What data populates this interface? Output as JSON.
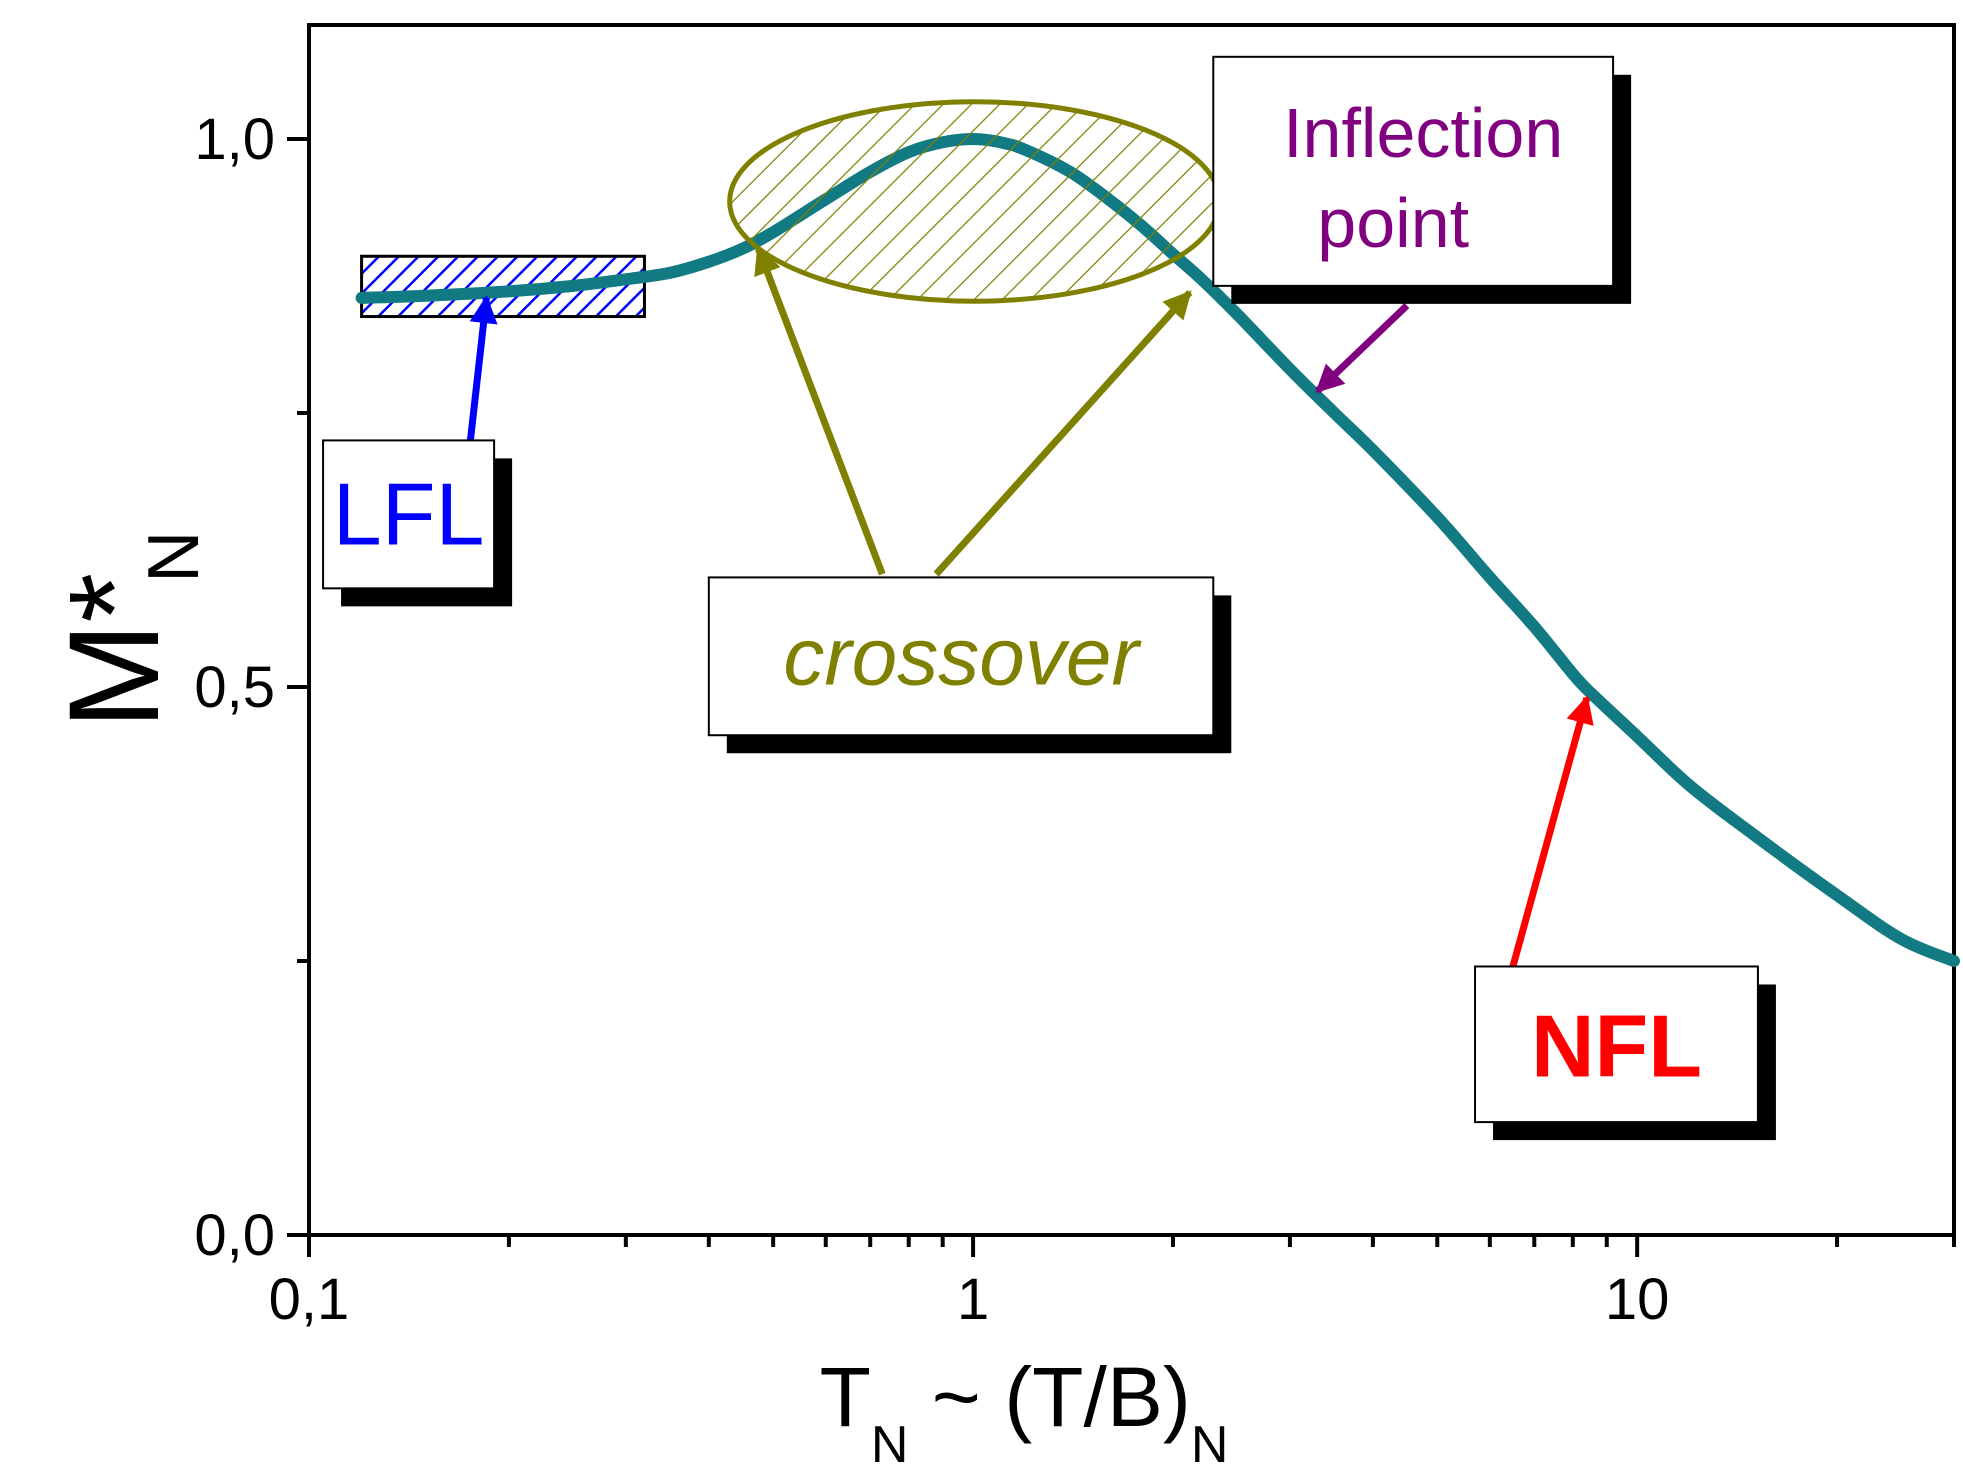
{
  "chart_data": {
    "type": "line",
    "x_scale": "log",
    "xlim": [
      0.1,
      30
    ],
    "ylim": [
      0.0,
      1.1
    ],
    "grid": false,
    "y_ticks": [
      {
        "value": 0.0,
        "label": "0,0"
      },
      {
        "value": 0.5,
        "label": "0,5"
      },
      {
        "value": 1.0,
        "label": "1,0"
      }
    ],
    "y_minor_ticks": [
      0.25,
      0.75
    ],
    "x_ticks": [
      {
        "value": 0.1,
        "label": "0,1"
      },
      {
        "value": 1,
        "label": "1"
      },
      {
        "value": 10,
        "label": "10"
      }
    ],
    "x_minor_ticks": [
      0.2,
      0.3,
      0.4,
      0.5,
      0.6,
      0.7,
      0.8,
      0.9,
      2,
      3,
      4,
      5,
      6,
      7,
      8,
      9,
      20,
      30
    ],
    "xlabel": {
      "main": "T",
      "sub1": "N",
      "mid": " ~ (T/B)",
      "sub2": "N"
    },
    "ylabel": {
      "main": "M*",
      "sub": "N"
    },
    "series": [
      {
        "color": "#127a82",
        "x": [
          0.12,
          0.15,
          0.2,
          0.25,
          0.3,
          0.35,
          0.4,
          0.45,
          0.5,
          0.6,
          0.7,
          0.8,
          0.9,
          1.0,
          1.1,
          1.2,
          1.4,
          1.6,
          1.8,
          2.0,
          2.2,
          2.5,
          3.0,
          3.5,
          4.0,
          5.0,
          6.0,
          7.0,
          8.0,
          8.5,
          10,
          12,
          15,
          20,
          25,
          30
        ],
        "y": [
          0.855,
          0.857,
          0.861,
          0.866,
          0.872,
          0.878,
          0.888,
          0.9,
          0.915,
          0.945,
          0.97,
          0.988,
          0.997,
          1.0,
          0.997,
          0.99,
          0.97,
          0.945,
          0.92,
          0.895,
          0.873,
          0.84,
          0.79,
          0.75,
          0.716,
          0.655,
          0.6,
          0.555,
          0.512,
          0.495,
          0.455,
          0.41,
          0.365,
          0.31,
          0.27,
          0.25
        ]
      }
    ],
    "annotations": {
      "lfl": {
        "text": "LFL",
        "color": "#0000ff",
        "hatch_x": [
          0.12,
          0.32
        ],
        "hatch_y": [
          0.838,
          0.893
        ],
        "box_x": [
          0.105,
          0.19
        ],
        "box_y": [
          0.59,
          0.725
        ],
        "arrow_from": [
          0.175,
          0.725
        ],
        "arrow_to": [
          0.185,
          0.855
        ]
      },
      "crossover": {
        "text": "crossover",
        "color": "#808000",
        "ellipse_x": [
          0.43,
          2.35
        ],
        "ellipse_y": [
          0.852,
          1.034
        ],
        "box_x": [
          0.4,
          2.3
        ],
        "box_y": [
          0.456,
          0.6
        ],
        "arrows": [
          {
            "from": [
              0.73,
              0.603
            ],
            "to": [
              0.475,
              0.9
            ]
          },
          {
            "from": [
              0.88,
              0.603
            ],
            "to": [
              2.12,
              0.86
            ]
          }
        ]
      },
      "inflection": {
        "text_line1": "Inflection",
        "text_line2": "point",
        "color": "#800080",
        "box_x": [
          2.3,
          9.2
        ],
        "box_y": [
          0.866,
          1.075
        ],
        "arrow_from": [
          4.5,
          0.848
        ],
        "arrow_to": [
          3.3,
          0.77
        ]
      },
      "nfl": {
        "text": "NFL",
        "color": "#ff0000",
        "box_x": [
          5.7,
          15.2
        ],
        "box_y": [
          0.103,
          0.245
        ],
        "arrow_from": [
          6.5,
          0.245
        ],
        "arrow_to": [
          8.4,
          0.49
        ]
      }
    }
  }
}
